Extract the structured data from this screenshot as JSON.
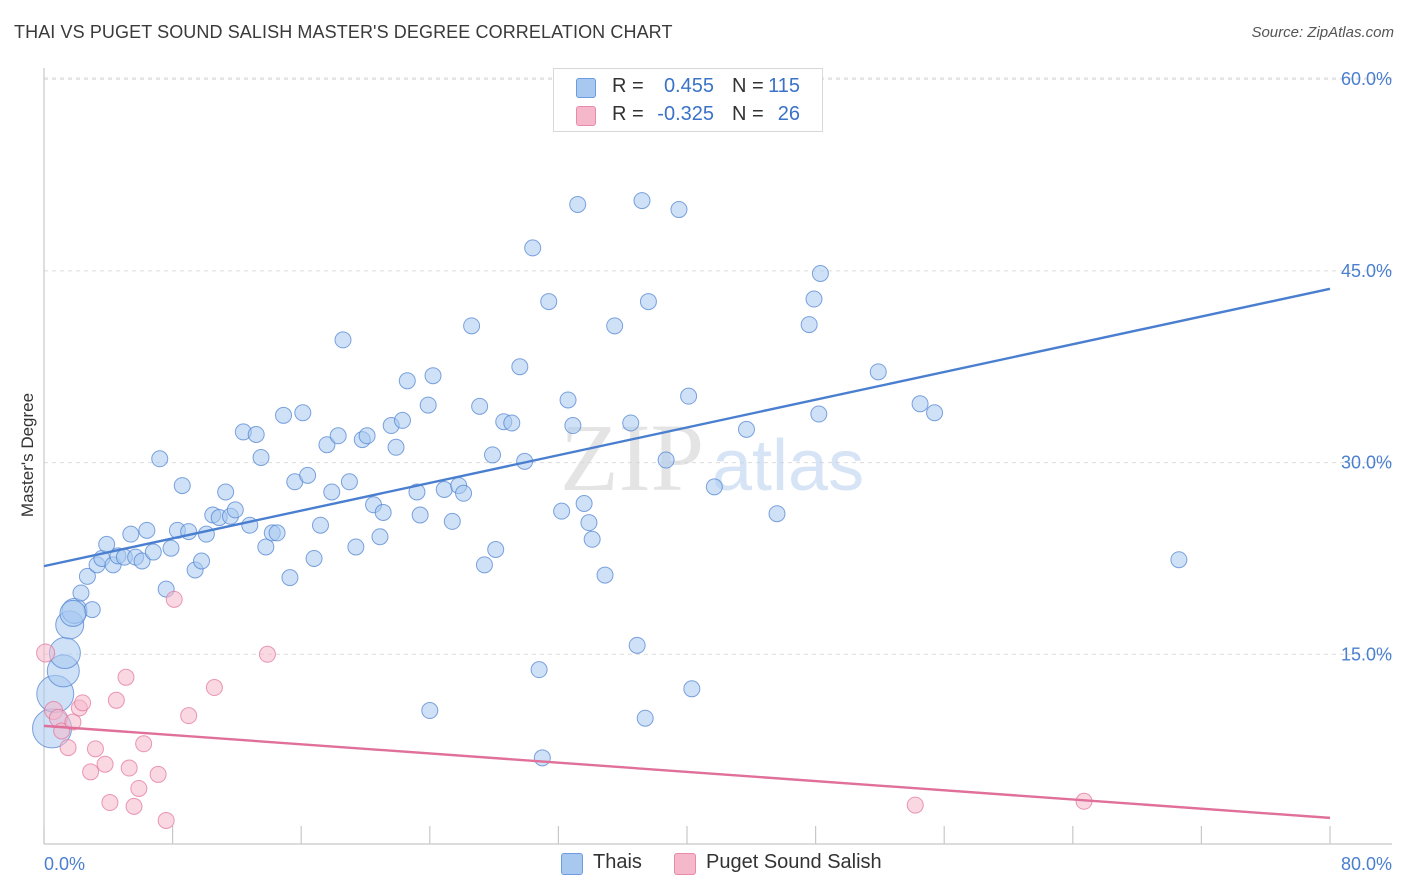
{
  "header": {
    "title": "THAI VS PUGET SOUND SALISH MASTER'S DEGREE CORRELATION CHART",
    "source": "Source: ZipAtlas.com"
  },
  "watermark": {
    "zip": "ZIP",
    "atlas": "atlas"
  },
  "legend": {
    "rows": [
      {
        "r_label": "R =",
        "r_value": "0.455",
        "n_label": "N =",
        "n_value": "115",
        "color": "#a8c8f0"
      },
      {
        "r_label": "R =",
        "r_value": "-0.325",
        "n_label": "N =",
        "n_value": "26",
        "color": "#f5b8cb"
      }
    ]
  },
  "bottom_legend": [
    {
      "label": "Thais",
      "color": "#a8c8f0"
    },
    {
      "label": "Puget Sound Salish",
      "color": "#f5b8cb"
    }
  ],
  "chart_data": {
    "type": "scatter",
    "title": "THAI VS PUGET SOUND SALISH MASTER'S DEGREE CORRELATION CHART",
    "xlabel": "",
    "ylabel": "Master's Degree",
    "xlim": [
      0,
      80
    ],
    "ylim": [
      0,
      63
    ],
    "x_tick_labels": [
      "0.0%",
      "80.0%"
    ],
    "y_ticks": [
      15,
      30,
      45,
      60
    ],
    "y_tick_labels": [
      "15.0%",
      "30.0%",
      "45.0%",
      "60.0%"
    ],
    "grid": true,
    "legend_position": "top-center",
    "series": [
      {
        "name": "Thais",
        "color": "#4a7fd0",
        "fill": "#a8c8f0",
        "trendline": {
          "x": [
            0,
            80
          ],
          "y": [
            21.9,
            43.6
          ]
        },
        "points": [
          [
            0.5,
            9.2
          ],
          [
            0.7,
            11.9
          ],
          [
            1.2,
            13.7
          ],
          [
            1.3,
            15.1
          ],
          [
            1.6,
            17.3
          ],
          [
            1.9,
            18.4
          ],
          [
            2.3,
            19.8
          ],
          [
            2.7,
            21.1
          ],
          [
            3.0,
            18.5
          ],
          [
            3.3,
            22.0
          ],
          [
            3.6,
            22.5
          ],
          [
            3.9,
            23.6
          ],
          [
            4.3,
            22.0
          ],
          [
            4.6,
            22.7
          ],
          [
            5.0,
            22.6
          ],
          [
            5.4,
            24.4
          ],
          [
            5.7,
            22.6
          ],
          [
            6.1,
            22.3
          ],
          [
            6.4,
            24.7
          ],
          [
            6.8,
            23.0
          ],
          [
            7.2,
            30.3
          ],
          [
            7.6,
            20.1
          ],
          [
            7.9,
            23.3
          ],
          [
            8.3,
            24.7
          ],
          [
            8.6,
            28.2
          ],
          [
            9.0,
            24.6
          ],
          [
            9.4,
            21.6
          ],
          [
            9.8,
            22.3
          ],
          [
            10.1,
            24.4
          ],
          [
            10.5,
            25.9
          ],
          [
            10.9,
            25.7
          ],
          [
            11.3,
            27.7
          ],
          [
            11.6,
            25.8
          ],
          [
            11.9,
            26.3
          ],
          [
            12.4,
            32.4
          ],
          [
            12.8,
            25.1
          ],
          [
            13.2,
            32.2
          ],
          [
            13.5,
            30.4
          ],
          [
            13.8,
            23.4
          ],
          [
            14.2,
            24.5
          ],
          [
            14.5,
            24.5
          ],
          [
            14.9,
            33.7
          ],
          [
            15.3,
            21.0
          ],
          [
            15.6,
            28.5
          ],
          [
            16.1,
            33.9
          ],
          [
            16.4,
            29.0
          ],
          [
            16.8,
            22.5
          ],
          [
            17.2,
            25.1
          ],
          [
            17.6,
            31.4
          ],
          [
            17.9,
            27.7
          ],
          [
            18.3,
            32.1
          ],
          [
            18.6,
            39.6
          ],
          [
            19.0,
            28.5
          ],
          [
            19.4,
            23.4
          ],
          [
            19.8,
            31.8
          ],
          [
            20.1,
            32.1
          ],
          [
            20.5,
            26.7
          ],
          [
            20.9,
            24.2
          ],
          [
            21.1,
            26.1
          ],
          [
            21.6,
            32.9
          ],
          [
            21.9,
            31.2
          ],
          [
            22.3,
            33.3
          ],
          [
            22.6,
            36.4
          ],
          [
            23.2,
            27.7
          ],
          [
            23.4,
            25.9
          ],
          [
            23.9,
            34.5
          ],
          [
            24.2,
            36.8
          ],
          [
            24.0,
            10.6
          ],
          [
            24.9,
            27.9
          ],
          [
            25.4,
            25.4
          ],
          [
            25.8,
            28.2
          ],
          [
            26.1,
            27.6
          ],
          [
            26.6,
            40.7
          ],
          [
            27.1,
            34.4
          ],
          [
            27.4,
            22.0
          ],
          [
            27.9,
            30.6
          ],
          [
            28.1,
            23.2
          ],
          [
            28.6,
            33.2
          ],
          [
            29.1,
            33.1
          ],
          [
            29.6,
            37.5
          ],
          [
            29.9,
            30.1
          ],
          [
            30.4,
            46.8
          ],
          [
            30.8,
            13.8
          ],
          [
            31.0,
            6.9
          ],
          [
            31.4,
            42.6
          ],
          [
            32.2,
            26.2
          ],
          [
            32.6,
            34.9
          ],
          [
            32.9,
            32.9
          ],
          [
            33.2,
            50.2
          ],
          [
            33.6,
            26.8
          ],
          [
            33.9,
            25.3
          ],
          [
            34.1,
            24.0
          ],
          [
            34.9,
            21.2
          ],
          [
            35.5,
            40.7
          ],
          [
            36.5,
            33.1
          ],
          [
            36.9,
            15.7
          ],
          [
            37.2,
            50.5
          ],
          [
            37.4,
            10.0
          ],
          [
            37.6,
            42.6
          ],
          [
            38.7,
            30.2
          ],
          [
            39.5,
            49.8
          ],
          [
            40.1,
            35.2
          ],
          [
            40.3,
            12.3
          ],
          [
            41.7,
            28.1
          ],
          [
            43.7,
            32.6
          ],
          [
            45.6,
            26.0
          ],
          [
            47.6,
            40.8
          ],
          [
            47.9,
            42.8
          ],
          [
            48.2,
            33.8
          ],
          [
            48.3,
            44.8
          ],
          [
            51.9,
            37.1
          ],
          [
            54.5,
            34.6
          ],
          [
            55.4,
            33.9
          ],
          [
            70.6,
            22.4
          ],
          [
            1.8,
            18.2
          ]
        ]
      },
      {
        "name": "Puget Sound Salish",
        "color": "#e0709a",
        "fill": "#f5b8cb",
        "trendline": {
          "x": [
            0,
            80
          ],
          "y": [
            9.4,
            2.2
          ]
        },
        "points": [
          [
            0.1,
            15.1
          ],
          [
            0.6,
            10.6
          ],
          [
            0.9,
            10.0
          ],
          [
            1.1,
            9.0
          ],
          [
            1.5,
            7.7
          ],
          [
            1.8,
            9.7
          ],
          [
            2.2,
            10.8
          ],
          [
            2.4,
            11.2
          ],
          [
            2.9,
            5.8
          ],
          [
            3.2,
            7.6
          ],
          [
            3.8,
            6.4
          ],
          [
            4.1,
            3.4
          ],
          [
            4.5,
            11.4
          ],
          [
            5.1,
            13.2
          ],
          [
            5.3,
            6.1
          ],
          [
            5.6,
            3.1
          ],
          [
            5.9,
            4.5
          ],
          [
            6.2,
            8.0
          ],
          [
            7.1,
            5.6
          ],
          [
            7.6,
            2.0
          ],
          [
            8.1,
            19.3
          ],
          [
            9.0,
            10.2
          ],
          [
            10.6,
            12.4
          ],
          [
            13.9,
            15.0
          ],
          [
            54.2,
            3.2
          ],
          [
            64.7,
            3.5
          ]
        ]
      }
    ]
  }
}
